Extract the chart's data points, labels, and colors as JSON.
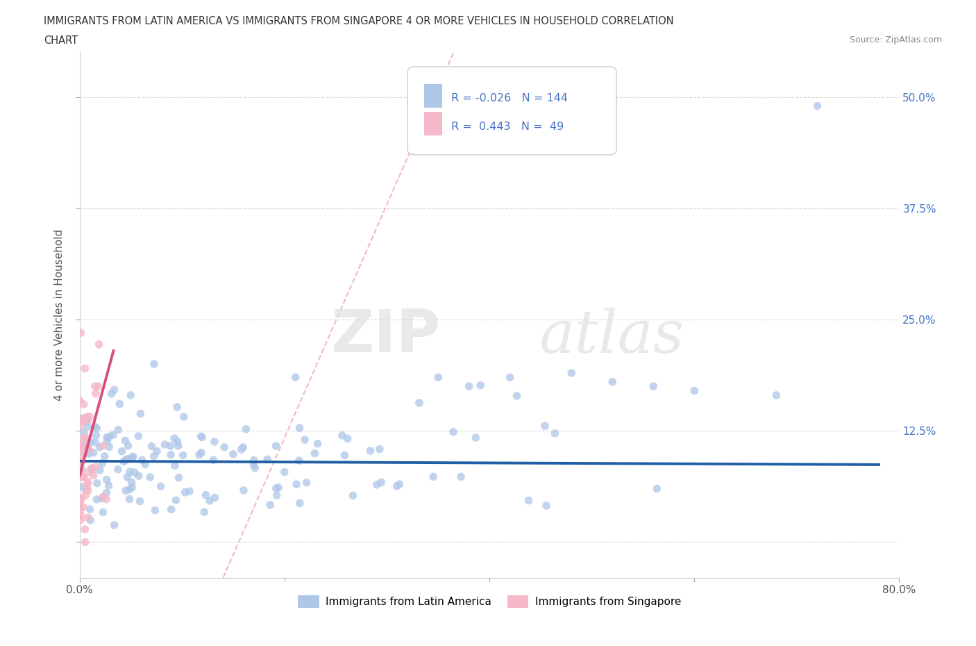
{
  "title_line1": "IMMIGRANTS FROM LATIN AMERICA VS IMMIGRANTS FROM SINGAPORE 4 OR MORE VEHICLES IN HOUSEHOLD CORRELATION",
  "title_line2": "CHART",
  "source": "Source: ZipAtlas.com",
  "xlabel_blue": "Immigrants from Latin America",
  "xlabel_pink": "Immigrants from Singapore",
  "ylabel": "4 or more Vehicles in Household",
  "watermark_zip": "ZIP",
  "watermark_atlas": "atlas",
  "xlim": [
    0.0,
    0.8
  ],
  "ylim": [
    -0.04,
    0.55
  ],
  "xtick_pos": [
    0.0,
    0.2,
    0.4,
    0.6,
    0.8
  ],
  "xtick_labels": [
    "0.0%",
    "",
    "",
    "",
    "80.0%"
  ],
  "ytick_pos": [
    0.0,
    0.125,
    0.25,
    0.375,
    0.5
  ],
  "ytick_labels_right": [
    "",
    "12.5%",
    "25.0%",
    "37.5%",
    "50.0%"
  ],
  "blue_R": -0.026,
  "blue_N": 144,
  "pink_R": 0.443,
  "pink_N": 49,
  "blue_color": "#aec6e8",
  "pink_color": "#f4b8c8",
  "blue_line_color": "#1f5fa6",
  "pink_line_color": "#d94f7a",
  "diag_line_color": "#f0b8c8",
  "legend_text_color": "#4472c4",
  "background_color": "#ffffff",
  "grid_color": "#d8d8d8",
  "seed": 42
}
